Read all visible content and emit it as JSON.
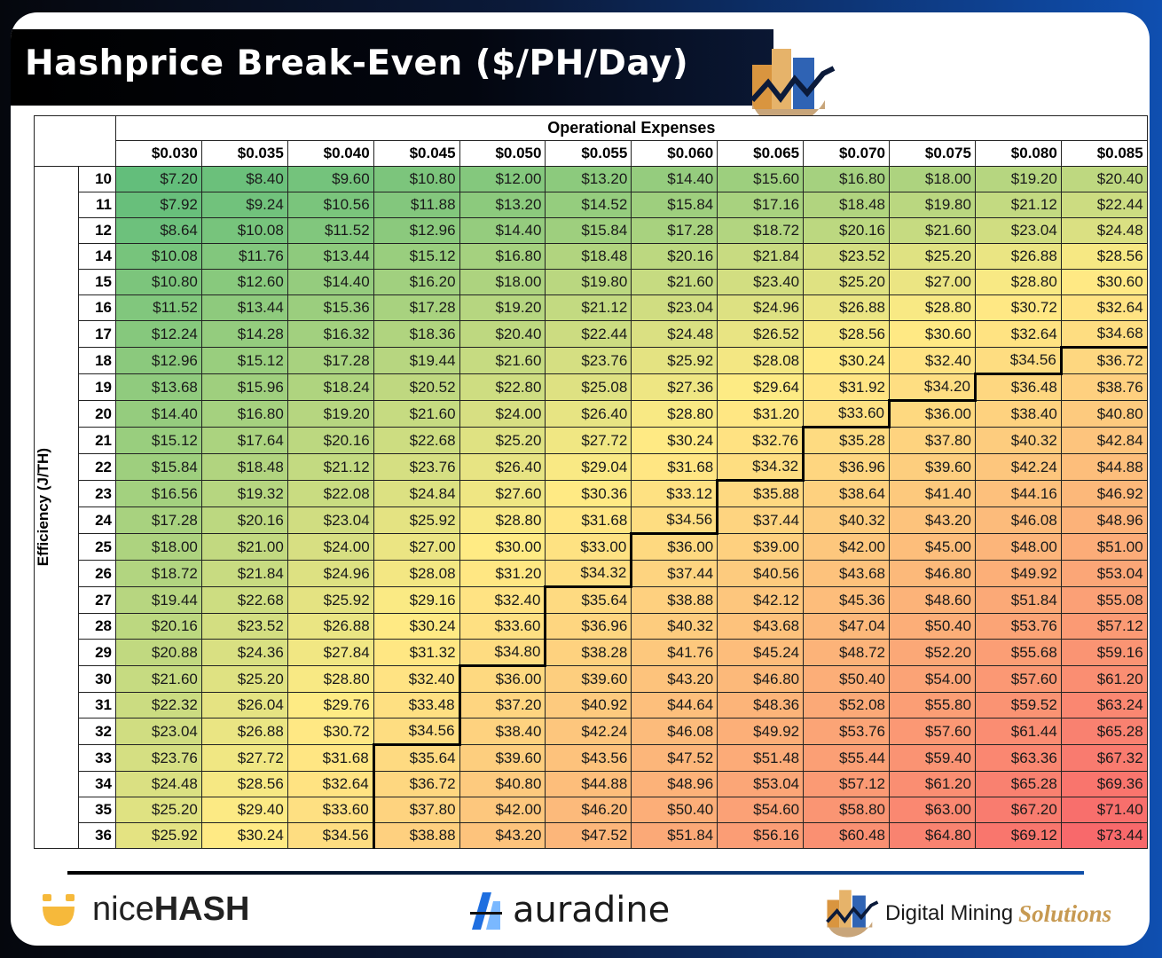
{
  "title": "Hashprice Break-Even ($/PH/Day)",
  "chart_data": {
    "type": "table",
    "title": "Hashprice Break-Even ($/PH/Day)",
    "column_group_label": "Operational Expenses",
    "row_group_label": "Efficiency (J/TH)",
    "columns": [
      "$0.030",
      "$0.035",
      "$0.040",
      "$0.045",
      "$0.050",
      "$0.055",
      "$0.060",
      "$0.065",
      "$0.070",
      "$0.075",
      "$0.080",
      "$0.085"
    ],
    "rows": [
      "10",
      "11",
      "12",
      "14",
      "15",
      "16",
      "17",
      "18",
      "19",
      "20",
      "21",
      "22",
      "23",
      "24",
      "25",
      "26",
      "27",
      "28",
      "29",
      "30",
      "31",
      "32",
      "33",
      "34",
      "35",
      "36"
    ],
    "values": [
      [
        "$7.20",
        "$8.40",
        "$9.60",
        "$10.80",
        "$12.00",
        "$13.20",
        "$14.40",
        "$15.60",
        "$16.80",
        "$18.00",
        "$19.20",
        "$20.40"
      ],
      [
        "$7.92",
        "$9.24",
        "$10.56",
        "$11.88",
        "$13.20",
        "$14.52",
        "$15.84",
        "$17.16",
        "$18.48",
        "$19.80",
        "$21.12",
        "$22.44"
      ],
      [
        "$8.64",
        "$10.08",
        "$11.52",
        "$12.96",
        "$14.40",
        "$15.84",
        "$17.28",
        "$18.72",
        "$20.16",
        "$21.60",
        "$23.04",
        "$24.48"
      ],
      [
        "$10.08",
        "$11.76",
        "$13.44",
        "$15.12",
        "$16.80",
        "$18.48",
        "$20.16",
        "$21.84",
        "$23.52",
        "$25.20",
        "$26.88",
        "$28.56"
      ],
      [
        "$10.80",
        "$12.60",
        "$14.40",
        "$16.20",
        "$18.00",
        "$19.80",
        "$21.60",
        "$23.40",
        "$25.20",
        "$27.00",
        "$28.80",
        "$30.60"
      ],
      [
        "$11.52",
        "$13.44",
        "$15.36",
        "$17.28",
        "$19.20",
        "$21.12",
        "$23.04",
        "$24.96",
        "$26.88",
        "$28.80",
        "$30.72",
        "$32.64"
      ],
      [
        "$12.24",
        "$14.28",
        "$16.32",
        "$18.36",
        "$20.40",
        "$22.44",
        "$24.48",
        "$26.52",
        "$28.56",
        "$30.60",
        "$32.64",
        "$34.68"
      ],
      [
        "$12.96",
        "$15.12",
        "$17.28",
        "$19.44",
        "$21.60",
        "$23.76",
        "$25.92",
        "$28.08",
        "$30.24",
        "$32.40",
        "$34.56",
        "$36.72"
      ],
      [
        "$13.68",
        "$15.96",
        "$18.24",
        "$20.52",
        "$22.80",
        "$25.08",
        "$27.36",
        "$29.64",
        "$31.92",
        "$34.20",
        "$36.48",
        "$38.76"
      ],
      [
        "$14.40",
        "$16.80",
        "$19.20",
        "$21.60",
        "$24.00",
        "$26.40",
        "$28.80",
        "$31.20",
        "$33.60",
        "$36.00",
        "$38.40",
        "$40.80"
      ],
      [
        "$15.12",
        "$17.64",
        "$20.16",
        "$22.68",
        "$25.20",
        "$27.72",
        "$30.24",
        "$32.76",
        "$35.28",
        "$37.80",
        "$40.32",
        "$42.84"
      ],
      [
        "$15.84",
        "$18.48",
        "$21.12",
        "$23.76",
        "$26.40",
        "$29.04",
        "$31.68",
        "$34.32",
        "$36.96",
        "$39.60",
        "$42.24",
        "$44.88"
      ],
      [
        "$16.56",
        "$19.32",
        "$22.08",
        "$24.84",
        "$27.60",
        "$30.36",
        "$33.12",
        "$35.88",
        "$38.64",
        "$41.40",
        "$44.16",
        "$46.92"
      ],
      [
        "$17.28",
        "$20.16",
        "$23.04",
        "$25.92",
        "$28.80",
        "$31.68",
        "$34.56",
        "$37.44",
        "$40.32",
        "$43.20",
        "$46.08",
        "$48.96"
      ],
      [
        "$18.00",
        "$21.00",
        "$24.00",
        "$27.00",
        "$30.00",
        "$33.00",
        "$36.00",
        "$39.00",
        "$42.00",
        "$45.00",
        "$48.00",
        "$51.00"
      ],
      [
        "$18.72",
        "$21.84",
        "$24.96",
        "$28.08",
        "$31.20",
        "$34.32",
        "$37.44",
        "$40.56",
        "$43.68",
        "$46.80",
        "$49.92",
        "$53.04"
      ],
      [
        "$19.44",
        "$22.68",
        "$25.92",
        "$29.16",
        "$32.40",
        "$35.64",
        "$38.88",
        "$42.12",
        "$45.36",
        "$48.60",
        "$51.84",
        "$55.08"
      ],
      [
        "$20.16",
        "$23.52",
        "$26.88",
        "$30.24",
        "$33.60",
        "$36.96",
        "$40.32",
        "$43.68",
        "$47.04",
        "$50.40",
        "$53.76",
        "$57.12"
      ],
      [
        "$20.88",
        "$24.36",
        "$27.84",
        "$31.32",
        "$34.80",
        "$38.28",
        "$41.76",
        "$45.24",
        "$48.72",
        "$52.20",
        "$55.68",
        "$59.16"
      ],
      [
        "$21.60",
        "$25.20",
        "$28.80",
        "$32.40",
        "$36.00",
        "$39.60",
        "$43.20",
        "$46.80",
        "$50.40",
        "$54.00",
        "$57.60",
        "$61.20"
      ],
      [
        "$22.32",
        "$26.04",
        "$29.76",
        "$33.48",
        "$37.20",
        "$40.92",
        "$44.64",
        "$48.36",
        "$52.08",
        "$55.80",
        "$59.52",
        "$63.24"
      ],
      [
        "$23.04",
        "$26.88",
        "$30.72",
        "$34.56",
        "$38.40",
        "$42.24",
        "$46.08",
        "$49.92",
        "$53.76",
        "$57.60",
        "$61.44",
        "$65.28"
      ],
      [
        "$23.76",
        "$27.72",
        "$31.68",
        "$35.64",
        "$39.60",
        "$43.56",
        "$47.52",
        "$51.48",
        "$55.44",
        "$59.40",
        "$63.36",
        "$67.32"
      ],
      [
        "$24.48",
        "$28.56",
        "$32.64",
        "$36.72",
        "$40.80",
        "$44.88",
        "$48.96",
        "$53.04",
        "$57.12",
        "$61.20",
        "$65.28",
        "$69.36"
      ],
      [
        "$25.20",
        "$29.40",
        "$33.60",
        "$37.80",
        "$42.00",
        "$46.20",
        "$50.40",
        "$54.60",
        "$58.80",
        "$63.00",
        "$67.20",
        "$71.40"
      ],
      [
        "$25.92",
        "$30.24",
        "$34.56",
        "$38.88",
        "$43.20",
        "$47.52",
        "$51.84",
        "$56.16",
        "$60.48",
        "$64.80",
        "$69.12",
        "$73.44"
      ]
    ],
    "color_scale": {
      "low": "#63be7b",
      "mid": "#ffeb84",
      "high": "#f8696b"
    }
  },
  "footer": {
    "nicehash": {
      "light": "nice",
      "bold": "HASH"
    },
    "auradine": "auradine",
    "dms": {
      "main": "Digital Mining",
      "accent": "Solutions"
    }
  }
}
